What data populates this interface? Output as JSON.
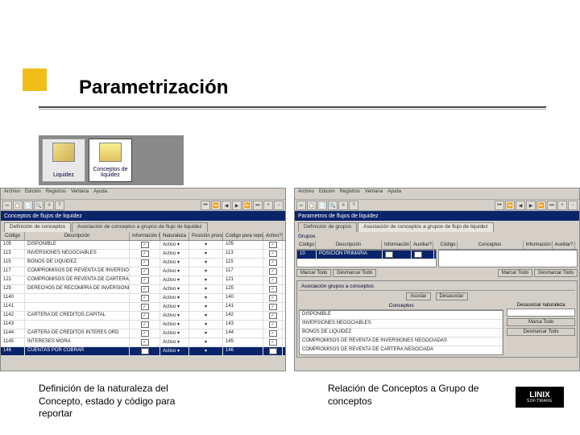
{
  "title": "Parametrización",
  "icons": {
    "liquidez": "Liquidez",
    "conceptos": "Conceptos de liquidez"
  },
  "menus": [
    "Archivo",
    "Edición",
    "Registros",
    "Ventana",
    "Ayuda"
  ],
  "left": {
    "window_title": "Conceptos de flujos de liquidez",
    "tab1": "Definición de conceptos",
    "tab2": "Asociación de conceptos a grupos de flujo de liquidez",
    "headers": {
      "codigo": "Código",
      "descripcion": "Descripción",
      "hist": "Información histórica?",
      "nat": "Naturaleza",
      "linea": "Posición procesamiento en línea?",
      "rep": "Código para reporte a entidades externas",
      "activo": "Activo?"
    },
    "rows": [
      {
        "cod": "105",
        "desc": "DISPONIBLE",
        "nat": "Activo",
        "rep": "105"
      },
      {
        "cod": "113",
        "desc": "INVERSIONES NEGOCIABLES",
        "nat": "Activo",
        "rep": "113"
      },
      {
        "cod": "115",
        "desc": "BONOS DE LIQUIDEZ",
        "nat": "Activo",
        "rep": "115"
      },
      {
        "cod": "117",
        "desc": "COMPROMISOS DE REVENTA DE INVERSIONES ...",
        "nat": "Activo",
        "rep": "117"
      },
      {
        "cod": "121",
        "desc": "COMPROMISOS DE REVENTA DE CARTERA NEGOCIADA",
        "nat": "Activo",
        "rep": "121"
      },
      {
        "cod": "125",
        "desc": "DERECHOS DE RECOMPRA DE INVERSIONES NEGOC",
        "nat": "Activo",
        "rep": "125"
      },
      {
        "cod": "1140",
        "desc": "",
        "nat": "Activo",
        "rep": "140"
      },
      {
        "cod": "1141",
        "desc": "",
        "nat": "Activo",
        "rep": "141"
      },
      {
        "cod": "1142",
        "desc": "CARTERA DE CRÉDITOS CAPITAL",
        "nat": "Activo",
        "rep": "142"
      },
      {
        "cod": "1143",
        "desc": "",
        "nat": "Activo",
        "rep": "143"
      },
      {
        "cod": "1144",
        "desc": "CARTERA DE CRÉDITOS INTERÉS ORD",
        "nat": "Activo",
        "rep": "144"
      },
      {
        "cod": "1145",
        "desc": "INTERESES MORA",
        "nat": "Activo",
        "rep": "145"
      },
      {
        "cod": "146",
        "desc": "CUENTAS POR COBRAR",
        "nat": "Activo",
        "rep": "146"
      }
    ]
  },
  "right": {
    "window_title": "Parametros de flujos de liquidez",
    "tab1": "Definición de grupos",
    "tab2": "Asociación de conceptos a grupos de flujo de liquidez",
    "grupos_label": "Grupos",
    "headers": {
      "codigo": "Código",
      "descripcion": "Descripción",
      "hist": "Información histórica?",
      "aux": "Auxiliar?",
      "cod2": "Código",
      "conc": "Conceptos",
      "hist2": "Información histórica?",
      "aux2": "Auxiliar?"
    },
    "grupo_row": {
      "cod": "10",
      "desc": "POSICIÓN PRIMARIA"
    },
    "btn_marcar": "Marcar Todo",
    "btn_desmarcar": "Desmarcar Todo",
    "assoc_title": "Asociación grupos a conceptos",
    "btn_asociar": "Asociar",
    "btn_desasociar": "Desasociar",
    "conceptos_label": "Conceptos",
    "desasoc_label": "Desasociar naturaleza",
    "marca_todo": "Marca Todo",
    "desmarca_todo": "Desmarcar Todo",
    "concept_rows": [
      "DISPONIBLE",
      "INVERSIONES NEGOCIABLES",
      "BONOS DE LIQUIDEZ",
      "COMPROMISOS DE REVENTA DE INVERSIONES NEGOCIADAS",
      "COMPROMISOS DE REVENTA DE CARTERA NEGOCIADA"
    ]
  },
  "caption_left": "Definición de la naturaleza del Concepto, estado y código para reportar",
  "caption_right": "Relación de Conceptos a Grupo de conceptos",
  "logo": "LINIX",
  "logo_sub": "SOFTWARE"
}
